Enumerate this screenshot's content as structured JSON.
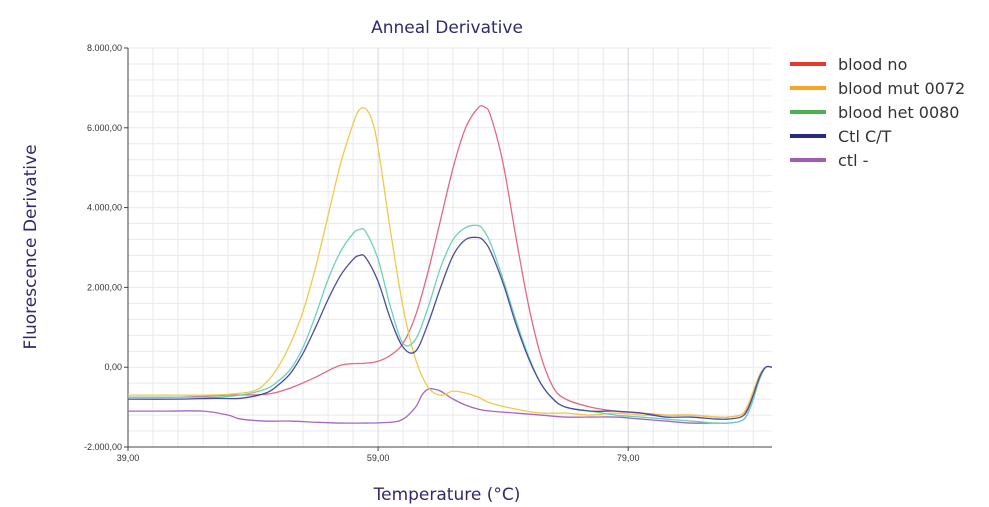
{
  "chart_data": {
    "type": "line",
    "title": "Anneal Derivative",
    "xlabel": "Temperature (°C)",
    "ylabel": "Fluorescence Derivative",
    "xlim": [
      39,
      90.5
    ],
    "ylim": [
      -2000,
      8000
    ],
    "x_ticks": [
      39,
      59,
      79
    ],
    "x_tick_labels": [
      "39,00",
      "59,00",
      "79,00"
    ],
    "y_ticks": [
      -2000,
      0,
      2000,
      4000,
      6000,
      8000
    ],
    "y_tick_labels": [
      "-2.000,00",
      "0,00",
      "2.000,00",
      "4.000,00",
      "6.000,00",
      "8.000,00"
    ],
    "grid": true,
    "legend_position": "right",
    "series": [
      {
        "name": "blood no",
        "legend_color": "#e63a2e",
        "line_color": "#e06a82",
        "x": [
          39,
          43,
          47,
          50,
          52,
          54,
          56,
          58,
          59,
          60,
          61,
          62,
          63,
          64,
          65,
          66,
          67,
          67.5,
          68,
          69,
          70,
          71,
          72,
          73,
          74,
          76,
          78,
          80,
          82,
          84,
          86,
          87,
          88,
          88.5,
          89,
          89.5,
          90,
          90.5
        ],
        "y": [
          -750,
          -750,
          -700,
          -680,
          -520,
          -250,
          50,
          100,
          150,
          300,
          600,
          1300,
          2400,
          3700,
          5000,
          6000,
          6500,
          6520,
          6300,
          5100,
          3300,
          1600,
          300,
          -500,
          -800,
          -1000,
          -1100,
          -1150,
          -1200,
          -1200,
          -1250,
          -1250,
          -1200,
          -1050,
          -700,
          -200,
          0,
          0
        ]
      },
      {
        "name": "blood mut 0072",
        "legend_color": "#f5a623",
        "line_color": "#f0c94a",
        "x": [
          39,
          42,
          45,
          47,
          49,
          50,
          51,
          52,
          53,
          54,
          55,
          56,
          57,
          57.5,
          58,
          58.5,
          59,
          60,
          61,
          62,
          63,
          64,
          65,
          66,
          67,
          68,
          70,
          72,
          74,
          76,
          78,
          80,
          82,
          84,
          86,
          87,
          88,
          88.5,
          89,
          89.5,
          90,
          90.5
        ],
        "y": [
          -700,
          -700,
          -700,
          -680,
          -600,
          -400,
          0,
          600,
          1400,
          2500,
          3800,
          5100,
          6100,
          6450,
          6480,
          6200,
          5500,
          3400,
          1500,
          200,
          -500,
          -700,
          -600,
          -650,
          -750,
          -900,
          -1050,
          -1150,
          -1150,
          -1200,
          -1150,
          -1200,
          -1200,
          -1200,
          -1250,
          -1250,
          -1200,
          -1000,
          -600,
          -200,
          0,
          0
        ]
      },
      {
        "name": "blood het 0080",
        "legend_color": "#4caf50",
        "line_color": "#6cd0bb",
        "x": [
          39,
          43,
          46,
          48,
          50,
          51,
          52,
          53,
          54,
          55,
          56,
          57,
          57.5,
          58,
          59,
          60,
          61,
          62,
          63,
          64,
          65,
          66,
          67,
          67.5,
          68,
          69,
          70,
          71,
          72,
          73,
          74,
          76,
          78,
          80,
          82,
          84,
          86,
          87,
          88,
          88.5,
          89,
          89.5,
          90,
          90.5
        ],
        "y": [
          -750,
          -750,
          -750,
          -700,
          -550,
          -350,
          -50,
          500,
          1300,
          2200,
          2900,
          3350,
          3450,
          3400,
          2700,
          1500,
          600,
          700,
          1500,
          2500,
          3200,
          3500,
          3550,
          3400,
          3100,
          2200,
          1200,
          300,
          -400,
          -800,
          -1000,
          -1100,
          -1200,
          -1250,
          -1300,
          -1350,
          -1400,
          -1400,
          -1350,
          -1200,
          -800,
          -300,
          0,
          0
        ]
      },
      {
        "name": "Ctl C/T",
        "legend_color": "#2b2a78",
        "line_color": "#4a4e9a",
        "x": [
          39,
          43,
          46,
          48,
          50,
          51,
          52,
          53,
          54,
          55,
          56,
          57,
          57.5,
          58,
          59,
          60,
          61,
          62,
          63,
          64,
          65,
          66,
          67,
          67.5,
          68,
          69,
          70,
          71,
          72,
          73,
          74,
          76,
          78,
          80,
          82,
          84,
          86,
          87,
          88,
          88.5,
          89,
          89.5,
          90,
          90.5
        ],
        "y": [
          -800,
          -800,
          -780,
          -780,
          -650,
          -450,
          -150,
          350,
          1000,
          1700,
          2300,
          2700,
          2800,
          2750,
          2150,
          1200,
          500,
          400,
          1100,
          2000,
          2800,
          3200,
          3250,
          3150,
          2900,
          2100,
          1100,
          250,
          -400,
          -800,
          -1000,
          -1100,
          -1100,
          -1150,
          -1250,
          -1250,
          -1300,
          -1300,
          -1250,
          -1100,
          -700,
          -250,
          0,
          0
        ]
      },
      {
        "name": "ctl -",
        "legend_color": "#a05ab4",
        "line_color": "#a468c0",
        "x": [
          39,
          42,
          45,
          47,
          48,
          50,
          52,
          54,
          56,
          58,
          60,
          61,
          62,
          62.5,
          63,
          63.5,
          64,
          64.5,
          65,
          66,
          67,
          68,
          70,
          72,
          74,
          76,
          78,
          80,
          82,
          84,
          86,
          87,
          88,
          88.5,
          89,
          89.5,
          90,
          90.5
        ],
        "y": [
          -1100,
          -1100,
          -1100,
          -1200,
          -1300,
          -1350,
          -1350,
          -1380,
          -1400,
          -1400,
          -1380,
          -1300,
          -1000,
          -700,
          -550,
          -550,
          -600,
          -700,
          -800,
          -950,
          -1050,
          -1100,
          -1150,
          -1200,
          -1250,
          -1250,
          -1250,
          -1300,
          -1350,
          -1400,
          -1400,
          -1400,
          -1350,
          -1200,
          -800,
          -300,
          0,
          0
        ]
      }
    ]
  }
}
